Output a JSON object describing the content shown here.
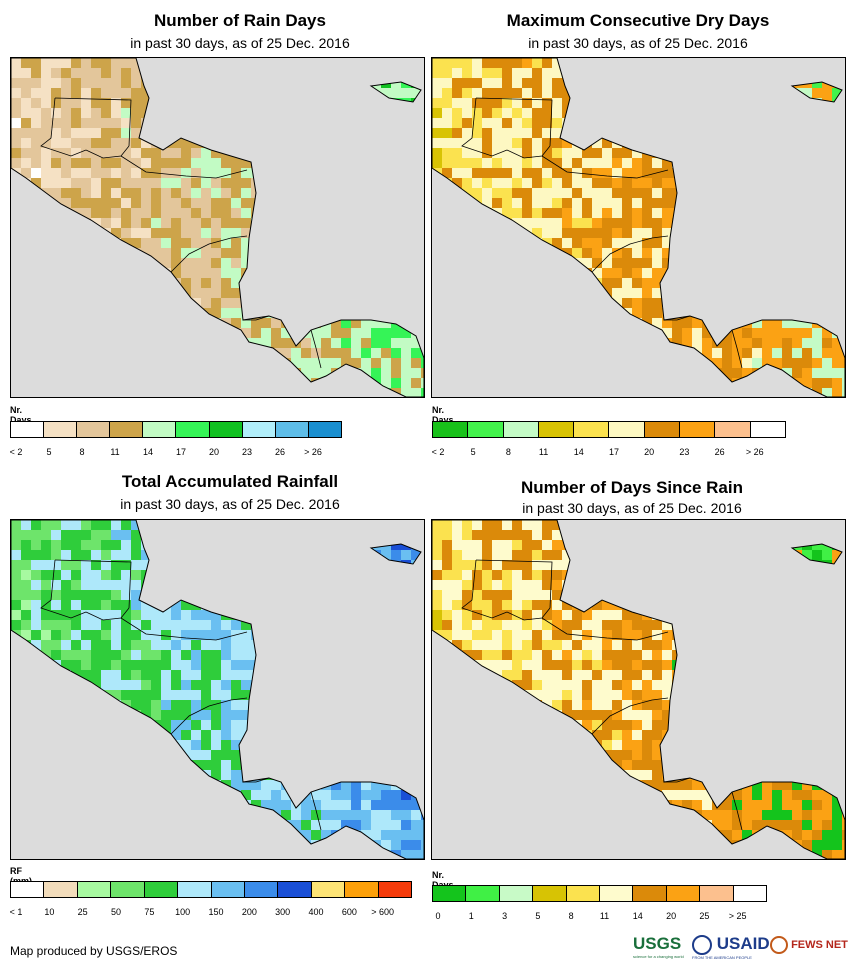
{
  "panels": [
    {
      "title": "Number of Rain Days",
      "subtitle": "in past 30 days, as of 25 Dec. 2016",
      "legend_unit": "Nr. Days",
      "legend_colors": [
        "#ffffff",
        "#f5e1c4",
        "#e3c69b",
        "#cda44a",
        "#c2fbc4",
        "#35f457",
        "#11c121",
        "#b1eefa",
        "#5ebde8",
        "#1a8fd0"
      ],
      "legend_labels": [
        "< 2",
        "5",
        "8",
        "11",
        "14",
        "17",
        "20",
        "23",
        "26",
        "> 26"
      ],
      "map_colors": [
        "#ffffff",
        "#f5e1c4",
        "#e3c69b",
        "#cda44a",
        "#c2fbc4",
        "#35f457",
        "#11c121"
      ]
    },
    {
      "title": "Maximum Consecutive Dry Days",
      "subtitle": "in past 30 days, as of 25 Dec. 2016",
      "legend_unit": "Nr. Days",
      "legend_colors": [
        "#18c11a",
        "#43f24c",
        "#c4fbc6",
        "#d8c304",
        "#fbe24f",
        "#fdf8c2",
        "#db8a0a",
        "#fba214",
        "#fcc08e",
        "#ffffff"
      ],
      "legend_labels": [
        "< 2",
        "5",
        "8",
        "11",
        "14",
        "17",
        "20",
        "23",
        "26",
        "> 26"
      ],
      "map_colors": [
        "#d8c304",
        "#fbe24f",
        "#fdf8c2",
        "#db8a0a",
        "#fba214",
        "#c4fbc6",
        "#43f24c"
      ]
    },
    {
      "title": "Total Accumulated Rainfall",
      "subtitle": "in past 30 days, as of 25 Dec. 2016",
      "legend_unit": "RF (mm)",
      "legend_colors": [
        "#ffffff",
        "#f2dcbb",
        "#a7f9a0",
        "#6ee46b",
        "#2fcd3b",
        "#aee8fa",
        "#6abff1",
        "#3b8cea",
        "#1a4fd6",
        "#fde476",
        "#fca00a",
        "#f53b0b"
      ],
      "legend_labels": [
        "< 1",
        "10",
        "25",
        "50",
        "75",
        "100",
        "150",
        "200",
        "300",
        "400",
        "600",
        "> 600"
      ],
      "map_colors": [
        "#a7f9a0",
        "#6ee46b",
        "#2fcd3b",
        "#aee8fa",
        "#6abff1",
        "#3b8cea",
        "#1a4fd6"
      ]
    },
    {
      "title": "Number of Days Since Rain",
      "subtitle": "in past 30 days, as of 25 Dec. 2016",
      "legend_unit": "Nr. Days",
      "legend_colors": [
        "#14c41c",
        "#40f045",
        "#c8fac7",
        "#d7c304",
        "#fbe24f",
        "#fefbcd",
        "#db8a0a",
        "#fba214",
        "#fcc08e",
        "#ffffff"
      ],
      "legend_labels": [
        "0",
        "1",
        "3",
        "5",
        "8",
        "11",
        "14",
        "20",
        "25",
        "> 25"
      ],
      "map_colors": [
        "#d7c304",
        "#fbe24f",
        "#fefbcd",
        "#db8a0a",
        "#fba214",
        "#14c41c",
        "#40f045"
      ]
    }
  ],
  "footer": "Map produced by USGS/EROS",
  "logos": {
    "usgs": "USGS",
    "usgs_tagline": "science for a changing world",
    "usaid": "USAID",
    "usaid_tagline": "FROM THE AMERICAN PEOPLE",
    "fewsnet": "FEWS NET"
  }
}
